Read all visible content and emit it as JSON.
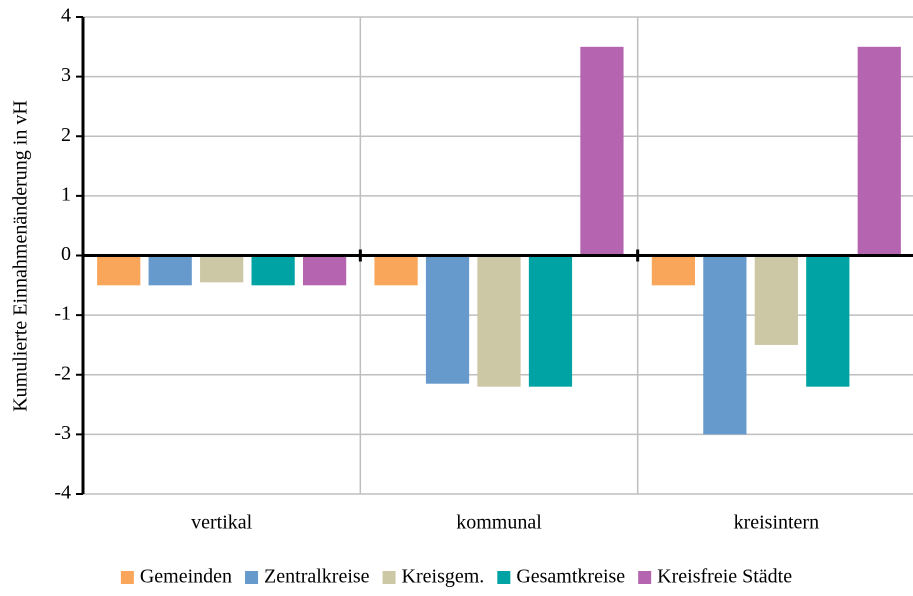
{
  "chart_data": {
    "type": "bar",
    "y_label": "Kumulierte Einnahmenänderung in vH",
    "categories": [
      "vertikal",
      "kommunal",
      "kreisintern"
    ],
    "series": [
      {
        "name": "Gemeinden",
        "color": "#f9a65a",
        "values": [
          -0.5,
          -0.5,
          -0.5
        ]
      },
      {
        "name": "Zentralkreise",
        "color": "#6699cc",
        "values": [
          -0.5,
          -2.15,
          -3.0
        ]
      },
      {
        "name": "Kreisgem.",
        "color": "#ccc7a4",
        "values": [
          -0.45,
          -2.2,
          -1.5
        ]
      },
      {
        "name": "Gesamtkreise",
        "color": "#00a3a3",
        "values": [
          -0.5,
          -2.2,
          -2.2
        ]
      },
      {
        "name": "Kreisfreie Städte",
        "color": "#b565b0",
        "values": [
          -0.5,
          3.5,
          3.5
        ]
      }
    ],
    "ylim": [
      -4,
      4
    ],
    "yticks": [
      -4,
      -3,
      -2,
      -1,
      0,
      1,
      2,
      3,
      4
    ],
    "grid": true,
    "legend": "bottom"
  }
}
